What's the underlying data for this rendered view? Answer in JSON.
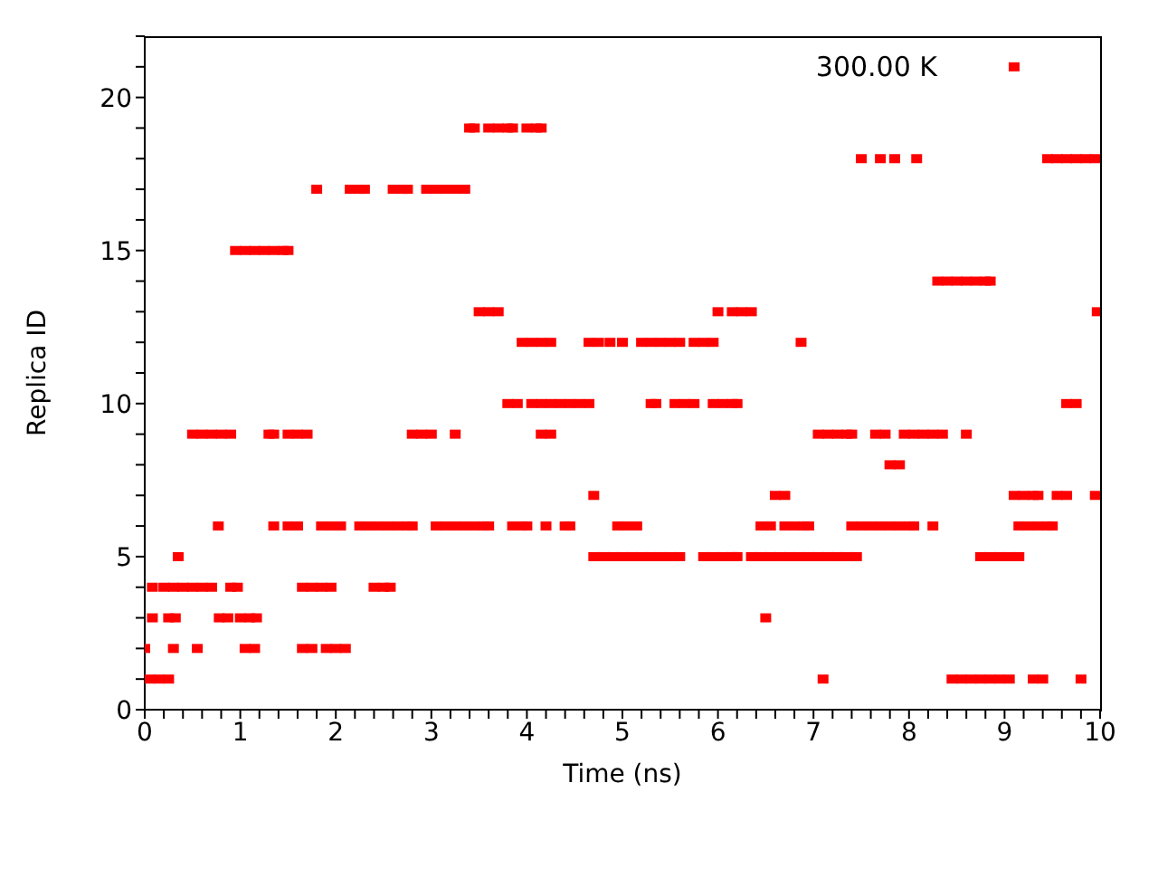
{
  "chart_data": {
    "type": "scatter",
    "xlabel": "Time (ns)",
    "ylabel": "Replica ID",
    "annotations": [
      "300.00 K"
    ],
    "marker": "square",
    "grid": false,
    "legend": false,
    "xlim": [
      0,
      10
    ],
    "ylim": [
      0,
      22
    ],
    "xticks": [
      0,
      {
        "value": 0.2,
        "label": null
      },
      {
        "value": 0.4,
        "label": null
      },
      {
        "value": 0.6,
        "label": null
      },
      {
        "value": 0.8,
        "label": null
      },
      1,
      {
        "value": 1.2,
        "label": null
      },
      {
        "value": 1.4,
        "label": null
      },
      {
        "value": 1.6,
        "label": null
      },
      {
        "value": 1.8,
        "label": null
      },
      2,
      {
        "value": 2.2,
        "label": null
      },
      {
        "value": 2.4,
        "label": null
      },
      {
        "value": 2.6,
        "label": null
      },
      {
        "value": 2.8,
        "label": null
      },
      3,
      {
        "value": 3.2,
        "label": null
      },
      {
        "value": 3.4,
        "label": null
      },
      {
        "value": 3.6,
        "label": null
      },
      {
        "value": 3.8,
        "label": null
      },
      4,
      {
        "value": 4.2,
        "label": null
      },
      {
        "value": 4.4,
        "label": null
      },
      {
        "value": 4.6,
        "label": null
      },
      {
        "value": 4.8,
        "label": null
      },
      5,
      {
        "value": 5.2,
        "label": null
      },
      {
        "value": 5.4,
        "label": null
      },
      {
        "value": 5.6,
        "label": null
      },
      {
        "value": 5.8,
        "label": null
      },
      6,
      {
        "value": 6.2,
        "label": null
      },
      {
        "value": 6.4,
        "label": null
      },
      {
        "value": 6.6,
        "label": null
      },
      {
        "value": 6.8,
        "label": null
      },
      7,
      {
        "value": 7.2,
        "label": null
      },
      {
        "value": 7.4,
        "label": null
      },
      {
        "value": 7.6,
        "label": null
      },
      {
        "value": 7.8,
        "label": null
      },
      8,
      {
        "value": 8.2,
        "label": null
      },
      {
        "value": 8.4,
        "label": null
      },
      {
        "value": 8.6,
        "label": null
      },
      {
        "value": 8.8,
        "label": null
      },
      9,
      {
        "value": 9.2,
        "label": null
      },
      {
        "value": 9.4,
        "label": null
      },
      {
        "value": 9.6,
        "label": null
      },
      {
        "value": 9.8,
        "label": null
      },
      10
    ],
    "yticks": [
      0,
      {
        "value": 1,
        "label": null
      },
      {
        "value": 2,
        "label": null
      },
      {
        "value": 3,
        "label": null
      },
      {
        "value": 4,
        "label": null
      },
      5,
      {
        "value": 6,
        "label": null
      },
      {
        "value": 7,
        "label": null
      },
      {
        "value": 8,
        "label": null
      },
      {
        "value": 9,
        "label": null
      },
      10,
      {
        "value": 11,
        "label": null
      },
      {
        "value": 12,
        "label": null
      },
      {
        "value": 13,
        "label": null
      },
      {
        "value": 14,
        "label": null
      },
      15,
      {
        "value": 16,
        "label": null
      },
      {
        "value": 17,
        "label": null
      },
      {
        "value": 18,
        "label": null
      },
      {
        "value": 19,
        "label": null
      },
      20,
      {
        "value": 21,
        "label": null
      },
      {
        "value": 22,
        "label": null
      }
    ],
    "series": [
      {
        "color": "#ff0000",
        "x": [
          0.05,
          0.15,
          0.25,
          7.1,
          8.45,
          8.55,
          8.65,
          8.75,
          8.85,
          8.95,
          9.05,
          9.3,
          9.4,
          9.8,
          0.0,
          0.3,
          0.55,
          1.05,
          1.15,
          1.65,
          1.75,
          1.9,
          2.0,
          2.1,
          0.08,
          0.25,
          0.32,
          0.78,
          0.87,
          1.0,
          1.1,
          1.17,
          6.5,
          0.08,
          0.2,
          0.3,
          0.4,
          0.5,
          0.6,
          0.7,
          0.9,
          0.97,
          1.65,
          1.75,
          1.85,
          1.95,
          2.4,
          2.5,
          2.57,
          0.35,
          4.7,
          4.8,
          4.9,
          5.0,
          5.1,
          5.2,
          5.3,
          5.4,
          5.5,
          5.6,
          5.85,
          5.95,
          6.05,
          6.15,
          6.2,
          6.35,
          6.45,
          6.55,
          6.65,
          6.75,
          6.85,
          6.95,
          7.05,
          7.15,
          7.25,
          7.35,
          7.45,
          8.75,
          8.85,
          8.95,
          9.05,
          9.15,
          0.77,
          1.35,
          1.5,
          1.6,
          1.85,
          1.95,
          2.05,
          2.25,
          2.35,
          2.45,
          2.55,
          2.65,
          2.75,
          2.8,
          3.05,
          3.15,
          3.25,
          3.35,
          3.45,
          3.55,
          3.6,
          3.85,
          3.95,
          4.0,
          4.2,
          4.4,
          4.45,
          4.95,
          5.05,
          5.15,
          6.45,
          6.55,
          6.7,
          6.8,
          6.9,
          6.95,
          7.4,
          7.5,
          7.6,
          7.7,
          7.8,
          7.9,
          8.0,
          8.05,
          8.25,
          9.15,
          9.25,
          9.35,
          9.45,
          9.5,
          4.7,
          6.6,
          6.7,
          9.1,
          9.2,
          9.3,
          9.35,
          9.55,
          9.65,
          9.95,
          7.8,
          7.9,
          0.5,
          0.6,
          0.7,
          0.8,
          0.9,
          1.3,
          1.35,
          1.5,
          1.6,
          1.7,
          2.8,
          2.9,
          3.0,
          3.25,
          4.15,
          4.25,
          7.05,
          7.15,
          7.25,
          7.35,
          7.4,
          7.65,
          7.75,
          7.95,
          8.05,
          8.15,
          8.25,
          8.35,
          8.6,
          3.8,
          3.9,
          4.05,
          4.15,
          4.25,
          4.35,
          4.45,
          4.55,
          4.65,
          5.3,
          5.35,
          5.55,
          5.65,
          5.75,
          5.95,
          6.05,
          6.15,
          6.2,
          9.65,
          9.75,
          3.95,
          4.05,
          4.15,
          4.25,
          4.65,
          4.75,
          4.87,
          5.0,
          5.2,
          5.3,
          5.4,
          5.5,
          5.6,
          5.75,
          5.85,
          5.95,
          6.87,
          3.5,
          3.6,
          3.7,
          6.0,
          6.15,
          6.25,
          6.35,
          9.97,
          8.3,
          8.4,
          8.5,
          8.6,
          8.7,
          8.8,
          8.85,
          0.95,
          1.05,
          1.15,
          1.25,
          1.35,
          1.45,
          1.5,
          1.8,
          2.15,
          2.25,
          2.3,
          2.6,
          2.7,
          2.75,
          2.95,
          3.05,
          3.15,
          3.25,
          3.35,
          7.5,
          7.7,
          7.85,
          8.08,
          9.45,
          9.55,
          9.65,
          9.75,
          9.85,
          9.95,
          3.4,
          3.45,
          3.6,
          3.7,
          3.8,
          3.85,
          4.0,
          4.1,
          4.15,
          9.1
        ],
        "values": [
          1,
          1,
          1,
          1,
          1,
          1,
          1,
          1,
          1,
          1,
          1,
          1,
          1,
          1,
          2,
          2,
          2,
          2,
          2,
          2,
          2,
          2,
          2,
          2,
          3,
          3,
          3,
          3,
          3,
          3,
          3,
          3,
          3,
          4,
          4,
          4,
          4,
          4,
          4,
          4,
          4,
          4,
          4,
          4,
          4,
          4,
          4,
          4,
          4,
          5,
          5,
          5,
          5,
          5,
          5,
          5,
          5,
          5,
          5,
          5,
          5,
          5,
          5,
          5,
          5,
          5,
          5,
          5,
          5,
          5,
          5,
          5,
          5,
          5,
          5,
          5,
          5,
          5,
          5,
          5,
          5,
          5,
          6,
          6,
          6,
          6,
          6,
          6,
          6,
          6,
          6,
          6,
          6,
          6,
          6,
          6,
          6,
          6,
          6,
          6,
          6,
          6,
          6,
          6,
          6,
          6,
          6,
          6,
          6,
          6,
          6,
          6,
          6,
          6,
          6,
          6,
          6,
          6,
          6,
          6,
          6,
          6,
          6,
          6,
          6,
          6,
          6,
          6,
          6,
          6,
          6,
          6,
          7,
          7,
          7,
          7,
          7,
          7,
          7,
          7,
          7,
          7,
          8,
          8,
          9,
          9,
          9,
          9,
          9,
          9,
          9,
          9,
          9,
          9,
          9,
          9,
          9,
          9,
          9,
          9,
          9,
          9,
          9,
          9,
          9,
          9,
          9,
          9,
          9,
          9,
          9,
          9,
          9,
          10,
          10,
          10,
          10,
          10,
          10,
          10,
          10,
          10,
          10,
          10,
          10,
          10,
          10,
          10,
          10,
          10,
          10,
          10,
          10,
          12,
          12,
          12,
          12,
          12,
          12,
          12,
          12,
          12,
          12,
          12,
          12,
          12,
          12,
          12,
          12,
          12,
          13,
          13,
          13,
          13,
          13,
          13,
          13,
          13,
          14,
          14,
          14,
          14,
          14,
          14,
          14,
          15,
          15,
          15,
          15,
          15,
          15,
          15,
          17,
          17,
          17,
          17,
          17,
          17,
          17,
          17,
          17,
          17,
          17,
          17,
          18,
          18,
          18,
          18,
          18,
          18,
          18,
          18,
          18,
          18,
          19,
          19,
          19,
          19,
          19,
          19,
          19,
          19,
          19,
          21
        ]
      }
    ]
  }
}
